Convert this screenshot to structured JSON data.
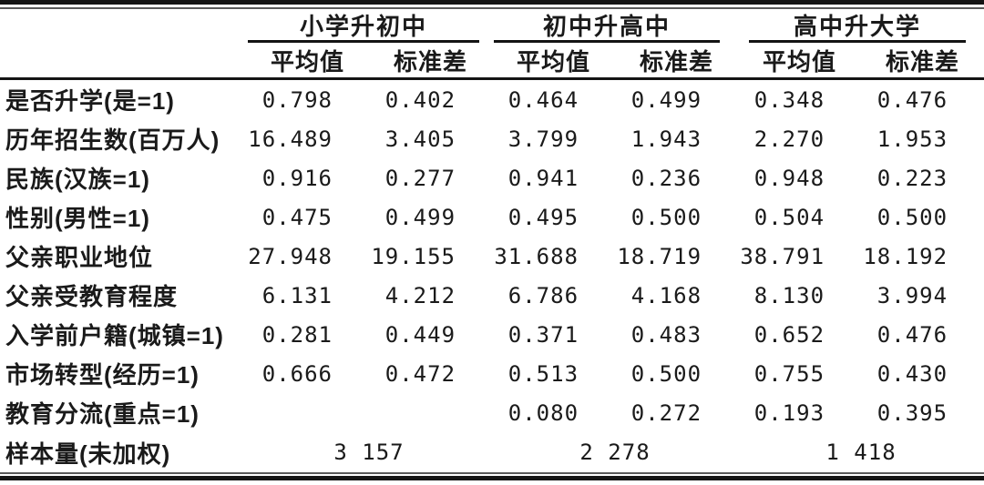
{
  "table": {
    "groups": [
      {
        "label": "小学升初中"
      },
      {
        "label": "初中升高中"
      },
      {
        "label": "高中升大学"
      }
    ],
    "subheaders": {
      "mean": "平均值",
      "sd": "标准差"
    },
    "rows": [
      {
        "label": "是否升学(是=1)",
        "values": [
          "0.798",
          "0.402",
          "0.464",
          "0.499",
          "0.348",
          "0.476"
        ]
      },
      {
        "label": "历年招生数(百万人)",
        "values": [
          "16.489",
          "3.405",
          "3.799",
          "1.943",
          "2.270",
          "1.953"
        ]
      },
      {
        "label": "民族(汉族=1)",
        "values": [
          "0.916",
          "0.277",
          "0.941",
          "0.236",
          "0.948",
          "0.223"
        ]
      },
      {
        "label": "性别(男性=1)",
        "values": [
          "0.475",
          "0.499",
          "0.495",
          "0.500",
          "0.504",
          "0.500"
        ]
      },
      {
        "label": "父亲职业地位",
        "values": [
          "27.948",
          "19.155",
          "31.688",
          "18.719",
          "38.791",
          "18.192"
        ]
      },
      {
        "label": "父亲受教育程度",
        "values": [
          "6.131",
          "4.212",
          "6.786",
          "4.168",
          "8.130",
          "3.994"
        ]
      },
      {
        "label": "入学前户籍(城镇=1)",
        "values": [
          "0.281",
          "0.449",
          "0.371",
          "0.483",
          "0.652",
          "0.476"
        ]
      },
      {
        "label": "市场转型(经历=1)",
        "values": [
          "0.666",
          "0.472",
          "0.513",
          "0.500",
          "0.755",
          "0.430"
        ]
      },
      {
        "label": "教育分流(重点=1)",
        "values": [
          "",
          "",
          "0.080",
          "0.272",
          "0.193",
          "0.395"
        ]
      }
    ],
    "sample_row": {
      "label": "样本量(未加权)",
      "values": [
        "3 157",
        "2 278",
        "1 418"
      ]
    }
  },
  "colors": {
    "text": "#1a1a1a",
    "rule": "#141414",
    "rule_thin": "#5a5a5a",
    "background": "#ffffff"
  }
}
